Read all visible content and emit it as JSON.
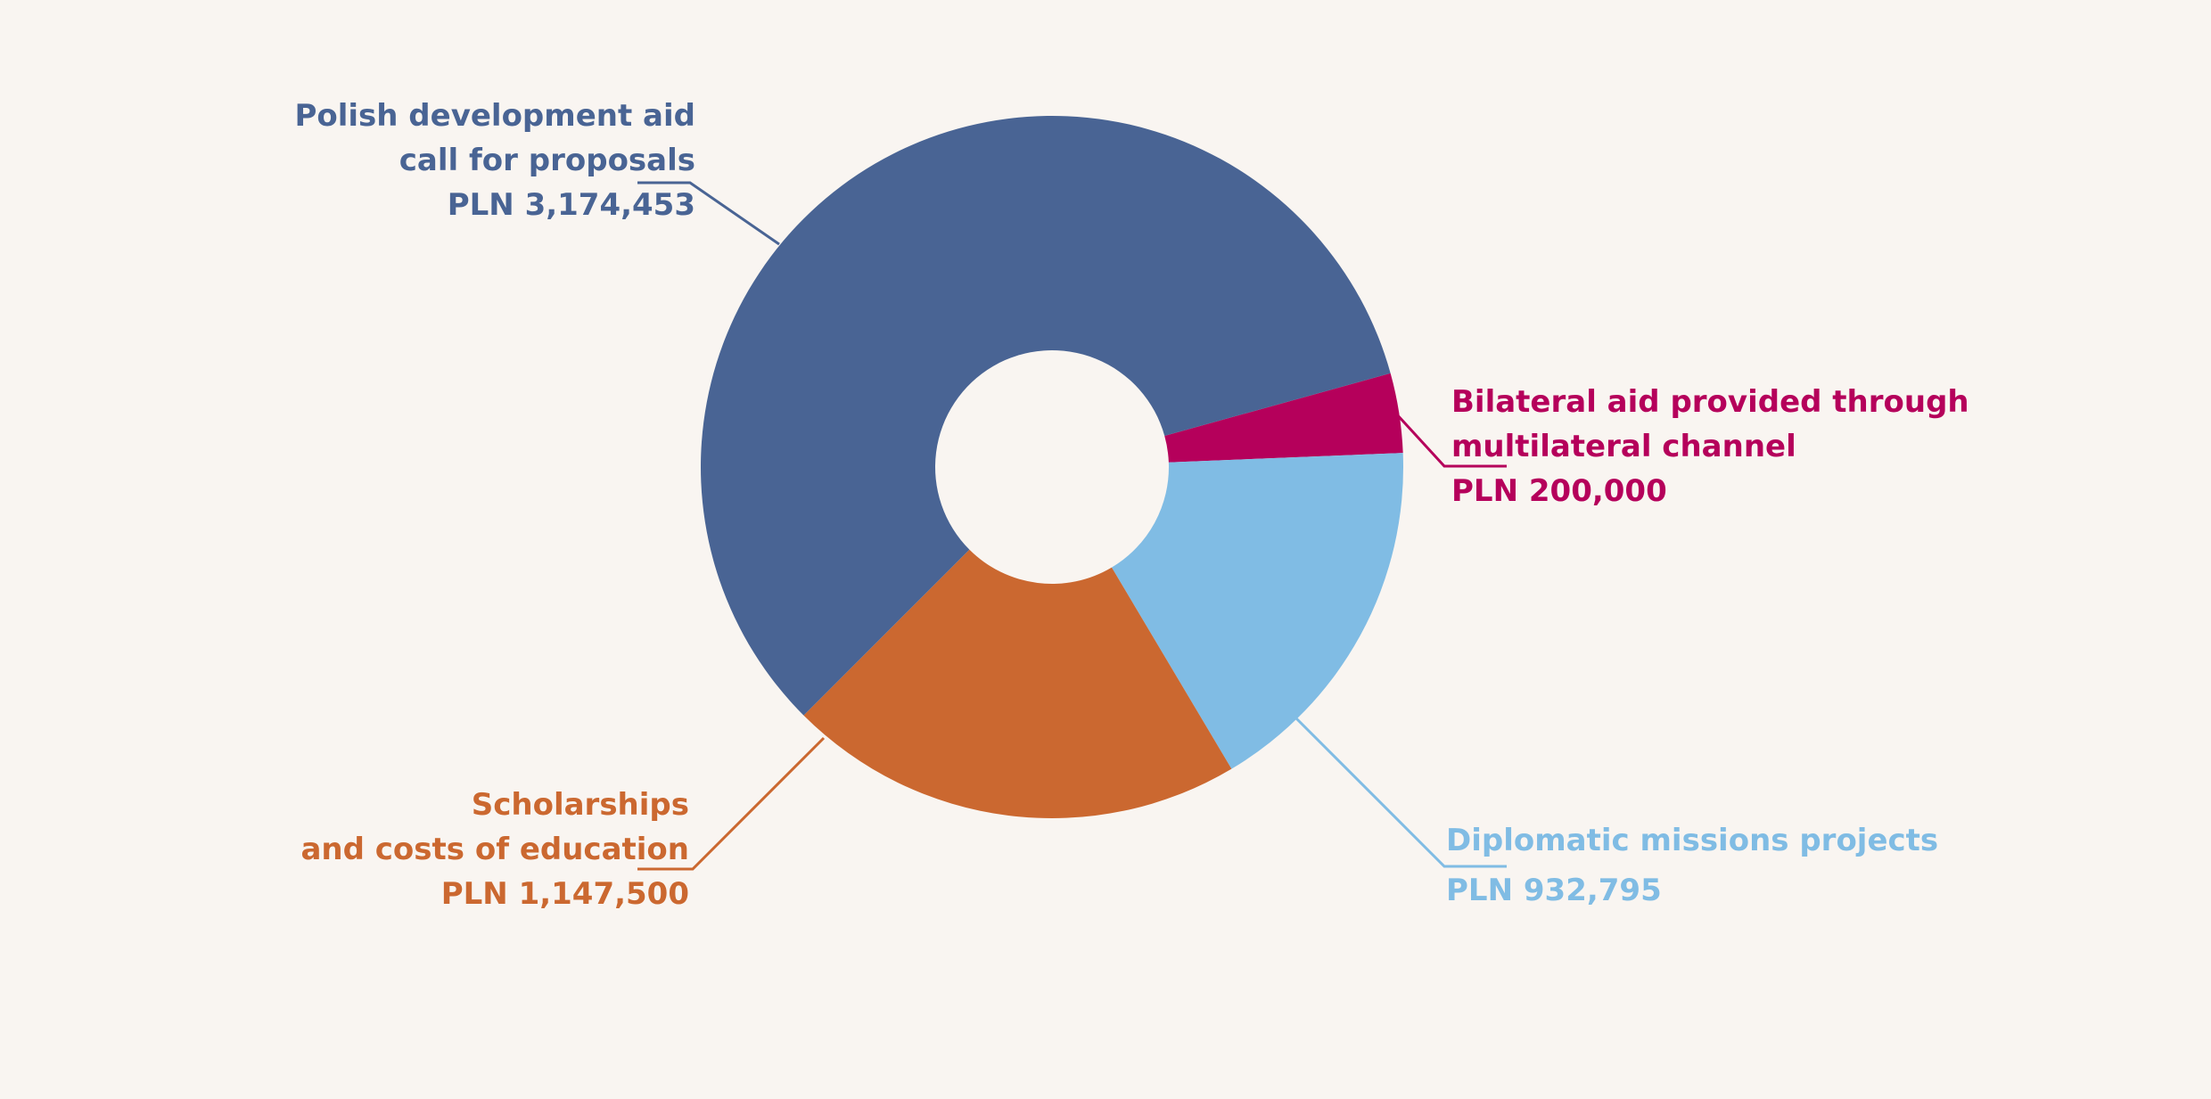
{
  "chart_data": {
    "type": "pie",
    "variant": "donut",
    "title": "",
    "slices": [
      {
        "line1": "Bilateral aid provided through",
        "line2": "multilateral channel",
        "value_label": "PLN 200,000",
        "value": 200000,
        "color": "#b5005b"
      },
      {
        "line1": "Diplomatic missions projects",
        "line2": "",
        "value_label": "PLN 932,795",
        "value": 932795,
        "color": "#80bce4"
      },
      {
        "line1": "Scholarships",
        "line2": "and costs of education",
        "value_label": "PLN 1,147,500",
        "value": 1147500,
        "color": "#cb6830"
      },
      {
        "line1": "Polish development aid",
        "line2": "call for proposals",
        "value_label": "PLN 3,174,453",
        "value": 3174453,
        "color": "#496494"
      }
    ]
  }
}
